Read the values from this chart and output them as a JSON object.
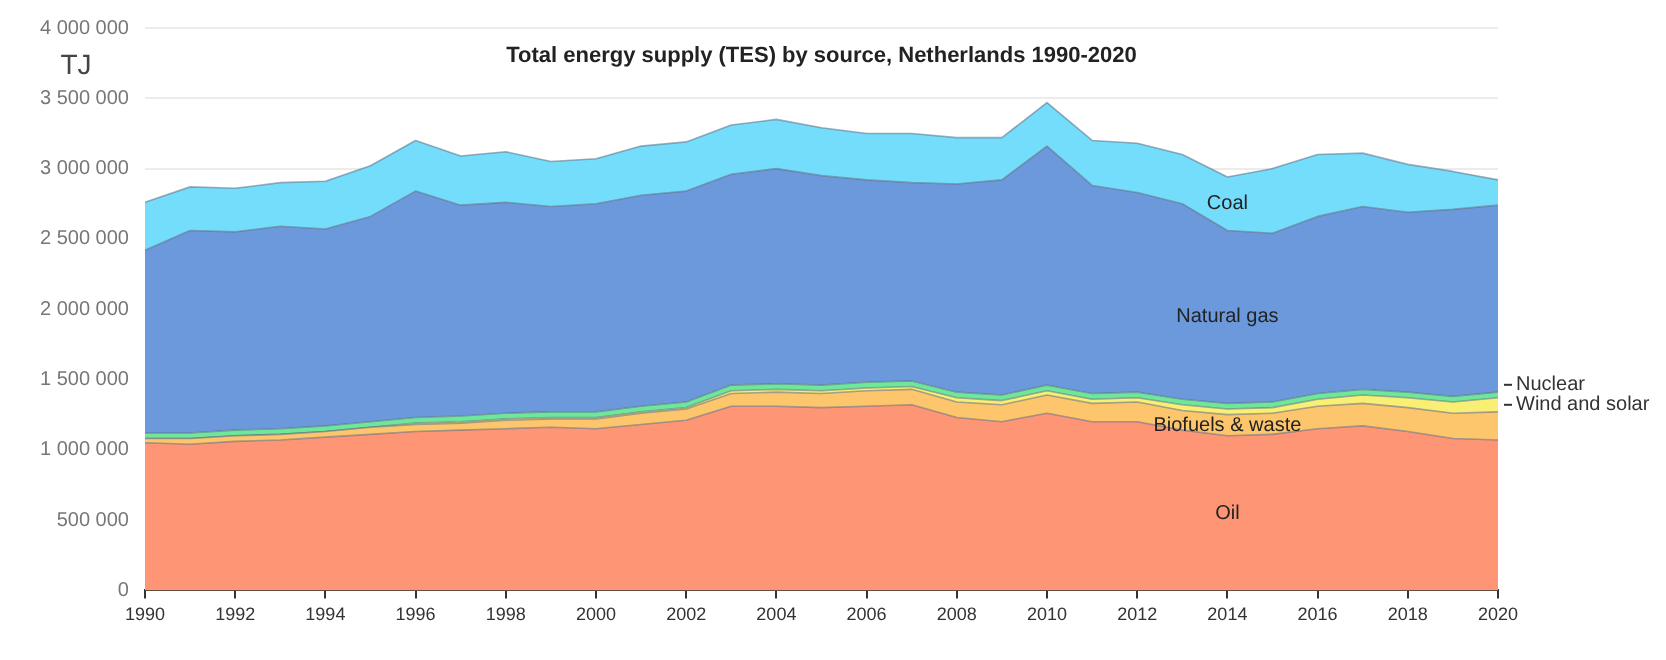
{
  "chart_data": {
    "type": "area",
    "title": "Total energy supply (TES) by source, Netherlands 1990-2020",
    "ylabel": "TJ",
    "stacked": true,
    "grid": "y",
    "legend": false,
    "marker": "none",
    "x": [
      1990,
      1991,
      1992,
      1993,
      1994,
      1995,
      1996,
      1997,
      1998,
      1999,
      2000,
      2001,
      2002,
      2003,
      2004,
      2005,
      2006,
      2007,
      2008,
      2009,
      2010,
      2011,
      2012,
      2013,
      2014,
      2015,
      2016,
      2017,
      2018,
      2019,
      2020
    ],
    "xlim": [
      1990,
      2020
    ],
    "xticks": [
      1990,
      1992,
      1994,
      1996,
      1998,
      2000,
      2002,
      2004,
      2006,
      2008,
      2010,
      2012,
      2014,
      2016,
      2018,
      2020
    ],
    "ylim": [
      0,
      4000000
    ],
    "yticks": [
      {
        "value": 0,
        "label": "0"
      },
      {
        "value": 500000,
        "label": "500 000"
      },
      {
        "value": 1000000,
        "label": "1 000 000"
      },
      {
        "value": 1500000,
        "label": "1 500 000"
      },
      {
        "value": 2000000,
        "label": "2 000 000"
      },
      {
        "value": 2500000,
        "label": "2 500 000"
      },
      {
        "value": 3000000,
        "label": "3 000 000"
      },
      {
        "value": 3500000,
        "label": "3 500 000"
      },
      {
        "value": 4000000,
        "label": "4 000 000"
      }
    ],
    "series": [
      {
        "name": "Oil",
        "color": "#fe9676",
        "values": [
          1050000,
          1040000,
          1060000,
          1070000,
          1090000,
          1110000,
          1130000,
          1140000,
          1150000,
          1160000,
          1150000,
          1180000,
          1210000,
          1310000,
          1310000,
          1300000,
          1310000,
          1320000,
          1230000,
          1200000,
          1260000,
          1200000,
          1200000,
          1140000,
          1100000,
          1110000,
          1150000,
          1170000,
          1130000,
          1080000,
          1070000
        ]
      },
      {
        "name": "Biofuels & waste",
        "color": "#fdc56c",
        "values": [
          30000,
          40000,
          40000,
          40000,
          40000,
          50000,
          50000,
          50000,
          60000,
          60000,
          70000,
          80000,
          80000,
          90000,
          100000,
          100000,
          110000,
          110000,
          110000,
          120000,
          130000,
          130000,
          140000,
          140000,
          150000,
          150000,
          160000,
          160000,
          170000,
          180000,
          200000
        ]
      },
      {
        "name": "Wind and solar",
        "color": "#f8ef74",
        "values": [
          0,
          0,
          0,
          0,
          0,
          0,
          10000,
          10000,
          10000,
          10000,
          10000,
          10000,
          10000,
          20000,
          20000,
          20000,
          20000,
          20000,
          30000,
          30000,
          30000,
          30000,
          30000,
          40000,
          40000,
          40000,
          50000,
          60000,
          70000,
          80000,
          100000
        ]
      },
      {
        "name": "Nuclear",
        "color": "#6ee79a",
        "values": [
          40000,
          40000,
          40000,
          40000,
          40000,
          40000,
          40000,
          40000,
          40000,
          40000,
          40000,
          40000,
          40000,
          40000,
          40000,
          40000,
          40000,
          40000,
          40000,
          40000,
          40000,
          40000,
          40000,
          40000,
          40000,
          40000,
          40000,
          40000,
          40000,
          40000,
          40000
        ]
      },
      {
        "name": "Natural gas",
        "color": "#6c99dc",
        "values": [
          1300000,
          1440000,
          1410000,
          1440000,
          1400000,
          1460000,
          1610000,
          1500000,
          1500000,
          1460000,
          1480000,
          1500000,
          1500000,
          1500000,
          1530000,
          1490000,
          1440000,
          1410000,
          1480000,
          1530000,
          1700000,
          1480000,
          1420000,
          1390000,
          1230000,
          1200000,
          1260000,
          1300000,
          1280000,
          1330000,
          1330000
        ]
      },
      {
        "name": "Coal",
        "color": "#74ddfc",
        "values": [
          340000,
          310000,
          310000,
          310000,
          340000,
          360000,
          360000,
          350000,
          360000,
          320000,
          320000,
          350000,
          350000,
          350000,
          350000,
          340000,
          330000,
          350000,
          330000,
          300000,
          310000,
          320000,
          350000,
          350000,
          380000,
          460000,
          440000,
          380000,
          340000,
          270000,
          180000
        ]
      }
    ]
  }
}
